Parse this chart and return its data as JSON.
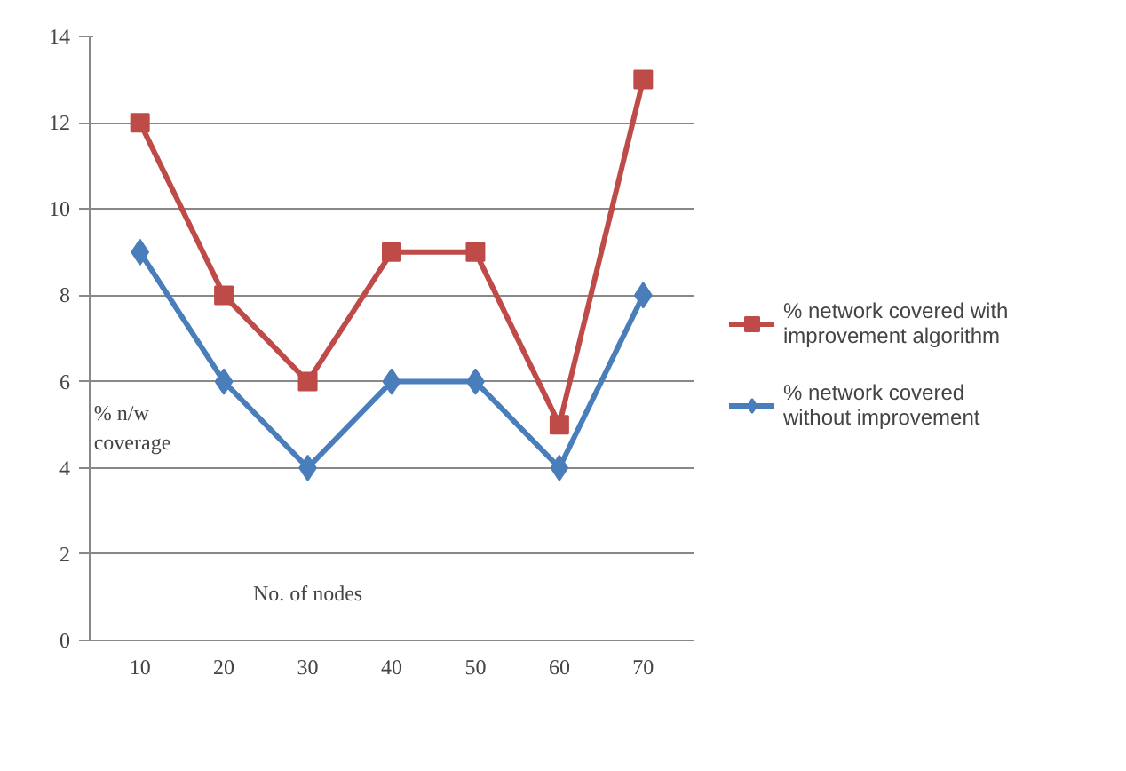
{
  "chart_data": {
    "type": "line",
    "xlabel": "No. of nodes",
    "ylabel": "% n/w coverage",
    "categories": [
      "10",
      "20",
      "30",
      "40",
      "50",
      "60",
      "70"
    ],
    "series": [
      {
        "name": "% network covered with improvement algorithm",
        "color": "#be4b48",
        "marker": "square",
        "values": [
          12,
          8,
          6,
          9,
          9,
          5,
          13
        ]
      },
      {
        "name": "% network covered without improvement",
        "color": "#4a7ebb",
        "marker": "diamond",
        "values": [
          9,
          6,
          4,
          6,
          6,
          4,
          8
        ]
      }
    ],
    "ylim": [
      0,
      14
    ],
    "yticks": [
      0,
      2,
      4,
      6,
      8,
      10,
      12,
      14
    ],
    "grid": "y",
    "legend": "right",
    "line_style": "solid"
  }
}
